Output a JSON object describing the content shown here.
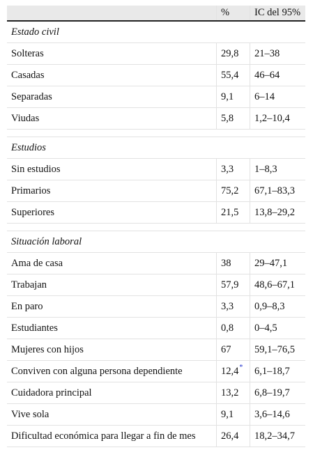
{
  "table": {
    "header": [
      "%",
      "IC del 95%"
    ],
    "sections": [
      {
        "title": "Estado civil",
        "rows": [
          {
            "label": "Solteras",
            "pct": "29,8",
            "ci": "21–38"
          },
          {
            "label": "Casadas",
            "pct": "55,4",
            "ci": "46–64"
          },
          {
            "label": "Separadas",
            "pct": "9,1",
            "ci": "6–14"
          },
          {
            "label": "Viudas",
            "pct": "5,8",
            "ci": "1,2–10,4"
          }
        ]
      },
      {
        "title": "Estudios",
        "rows": [
          {
            "label": "Sin estudios",
            "pct": "3,3",
            "ci": "1–8,3"
          },
          {
            "label": "Primarios",
            "pct": "75,2",
            "ci": "67,1–83,3"
          },
          {
            "label": "Superiores",
            "pct": "21,5",
            "ci": "13,8–29,2"
          }
        ]
      },
      {
        "title": "Situación laboral",
        "rows": [
          {
            "label": "Ama de casa",
            "pct": "38",
            "ci": "29–47,1"
          },
          {
            "label": "Trabajan",
            "pct": "57,9",
            "ci": "48,6–67,1"
          },
          {
            "label": "En paro",
            "pct": "3,3",
            "ci": "0,9–8,3"
          },
          {
            "label": "Estudiantes",
            "pct": "0,8",
            "ci": "0–4,5"
          },
          {
            "label": "Mujeres con hijos",
            "pct": "67",
            "ci": "59,1–76,5"
          },
          {
            "label": "Conviven con alguna persona dependiente",
            "pct": "12,4",
            "pct_note": "*",
            "ci": "6,1–18,7"
          },
          {
            "label": "Cuidadora principal",
            "pct": "13,2",
            "ci": "6,8–19,7"
          },
          {
            "label": "Vive sola",
            "pct": "9,1",
            "ci": "3,6–14,6"
          },
          {
            "label": "Dificultad económica para llegar a fin de mes",
            "pct": "26,4",
            "ci": "18,2–34,7"
          }
        ]
      }
    ]
  }
}
